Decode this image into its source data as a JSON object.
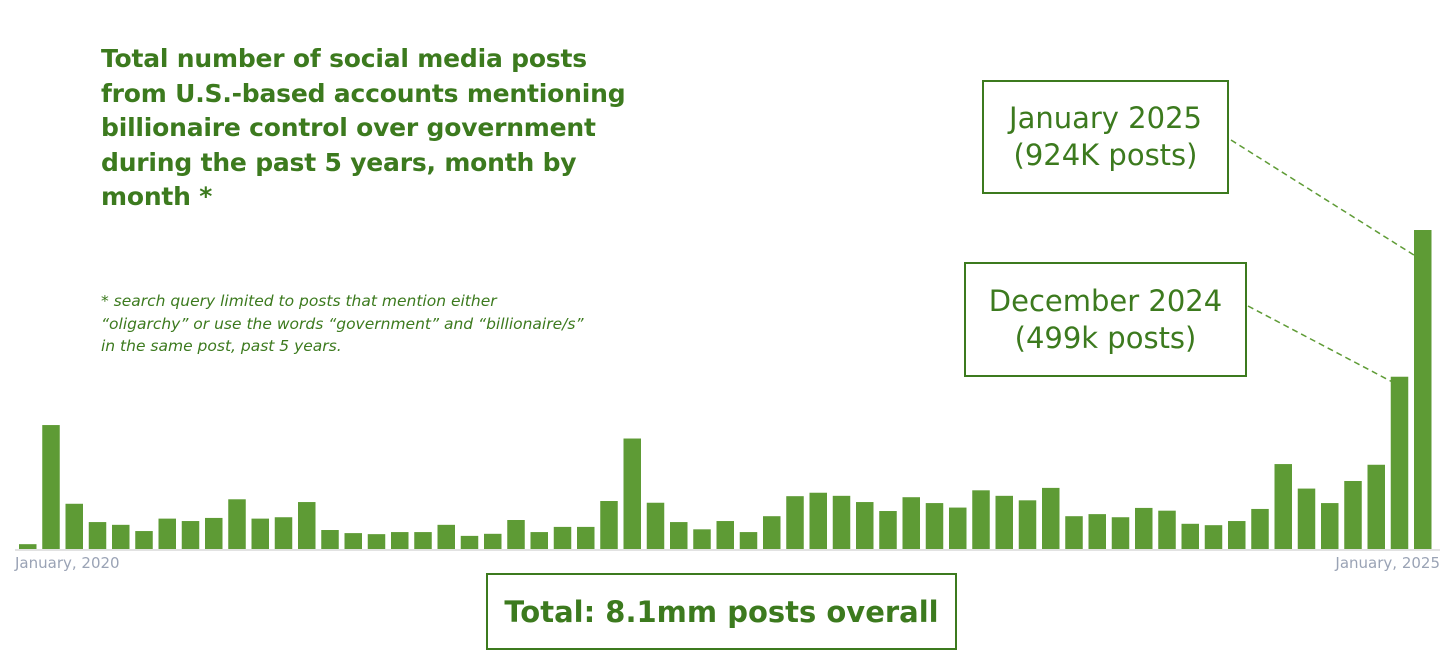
{
  "title": "Total number of social media posts from U.S.-based accounts mentioning billionaire control over government during the past 5 years, month by month *",
  "footnote": "* search query limited to posts that mention either\n“oligarchy” or use the words  “government” and “billionaire/s”\nin the same post, past 5 years.",
  "annotations": {
    "jan2025": {
      "line1": "January 2025",
      "line2": "(924K posts)"
    },
    "dec2024": {
      "line1": "December 2024",
      "line2": "(499k posts)"
    }
  },
  "total_label": "Total: 8.1mm posts overall",
  "colors": {
    "bar": "#5e9b35",
    "text": "#3c7a1e",
    "axis_label": "#9aa3b5",
    "axis_line": "#d9d9d9"
  },
  "chart_data": {
    "type": "bar",
    "start_label": "January, 2020",
    "end_label": "January, 2025",
    "unit": "posts",
    "ylim": [
      0,
      924000
    ],
    "values": [
      14000,
      359000,
      131000,
      78000,
      70000,
      52000,
      88000,
      81000,
      90000,
      144000,
      88000,
      92000,
      136000,
      55000,
      46000,
      43000,
      49000,
      49000,
      70000,
      38000,
      44000,
      84000,
      49000,
      64000,
      64000,
      139000,
      320000,
      134000,
      78000,
      57000,
      81000,
      49000,
      95000,
      153000,
      163000,
      154000,
      136000,
      110000,
      150000,
      133000,
      120000,
      170000,
      154000,
      141000,
      177000,
      95000,
      101000,
      92000,
      119000,
      111000,
      73000,
      69000,
      81000,
      116000,
      246000,
      175000,
      133000,
      197000,
      244000,
      499000,
      924000
    ]
  }
}
